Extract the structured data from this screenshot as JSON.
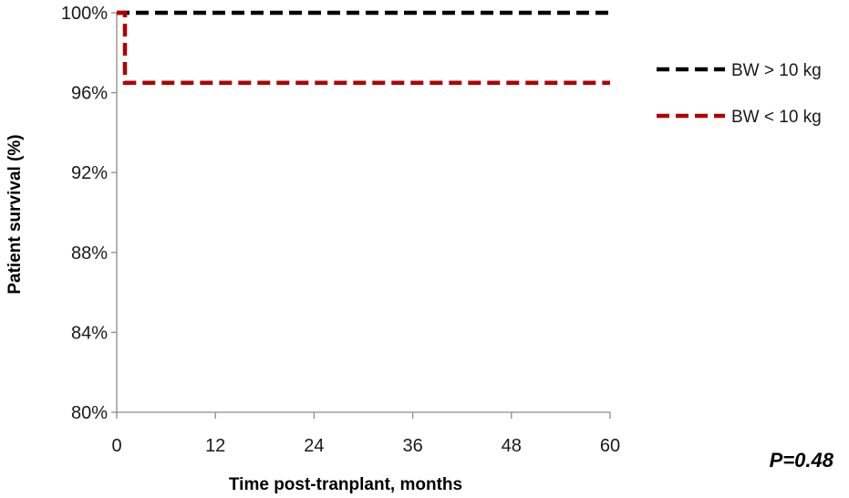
{
  "chart_data": {
    "type": "line",
    "step": true,
    "xlabel": "Time post-tranplant,  months",
    "ylabel": "Patient survival (%)",
    "xlim": [
      0,
      60
    ],
    "ylim": [
      80,
      100
    ],
    "x_ticks": [
      0,
      12,
      24,
      36,
      48,
      60
    ],
    "x_tick_labels": [
      "0",
      "12",
      "24",
      "36",
      "48",
      "60"
    ],
    "y_ticks": [
      80,
      84,
      88,
      92,
      96,
      100
    ],
    "y_tick_labels": [
      "80%",
      "84%",
      "88%",
      "92%",
      "96%",
      "100%"
    ],
    "grid": false,
    "legend_position": "right",
    "series": [
      {
        "name": "BW > 10 kg",
        "color": "#000000",
        "line_style": "dashed",
        "points": [
          [
            0,
            100
          ],
          [
            60,
            100
          ]
        ]
      },
      {
        "name": "BW < 10 kg",
        "color": "#b00000",
        "line_style": "dashed",
        "points": [
          [
            0,
            100
          ],
          [
            1,
            100
          ],
          [
            1,
            96.5
          ],
          [
            60,
            96.5
          ]
        ]
      }
    ],
    "annotation": "P=0.48"
  }
}
